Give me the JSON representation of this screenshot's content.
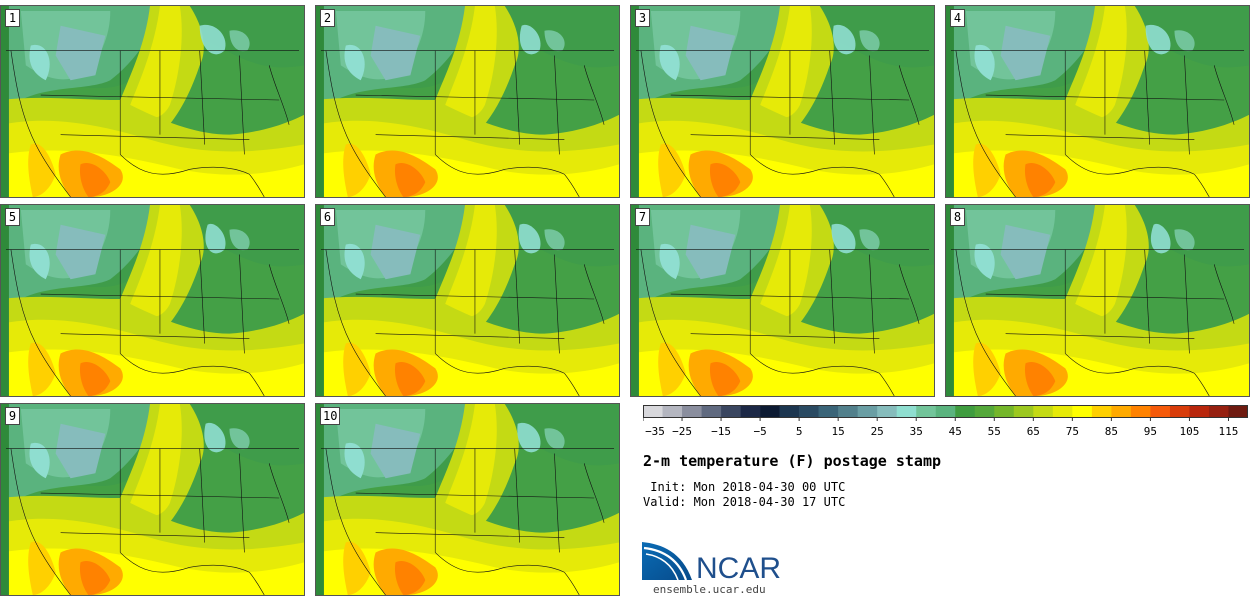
{
  "panels": [
    {
      "label": "1"
    },
    {
      "label": "2"
    },
    {
      "label": "3"
    },
    {
      "label": "4"
    },
    {
      "label": "5"
    },
    {
      "label": "6"
    },
    {
      "label": "7"
    },
    {
      "label": "8"
    },
    {
      "label": "9"
    },
    {
      "label": "10"
    }
  ],
  "colorbar": {
    "colors": [
      "#d8d8dc",
      "#b4b6c0",
      "#8a8e9e",
      "#606a80",
      "#3a4660",
      "#1c2846",
      "#0c1a32",
      "#1c3650",
      "#2a4a62",
      "#3a6478",
      "#52808c",
      "#6a9ea4",
      "#86bcbc",
      "#8fded0",
      "#72c49a",
      "#5ab37e",
      "#3f9c3f",
      "#54a83a",
      "#74b62a",
      "#9cc820",
      "#c4da14",
      "#e6ea08",
      "#ffff00",
      "#ffd000",
      "#ffaa00",
      "#ff8200",
      "#f55a0a",
      "#d83c0a",
      "#b8260c",
      "#962010",
      "#6e1a10"
    ],
    "tick_labels": [
      "−35",
      "−25",
      "−15",
      "−5",
      "5",
      "15",
      "25",
      "35",
      "45",
      "55",
      "65",
      "75",
      "85",
      "95",
      "105",
      "115"
    ]
  },
  "title": "2-m temperature (F) postage stamp",
  "init_line": " Init: Mon 2018-04-30 00 UTC",
  "valid_line": "Valid: Mon 2018-04-30 17 UTC",
  "logo_text": "NCAR",
  "website": "ensemble.ucar.edu"
}
